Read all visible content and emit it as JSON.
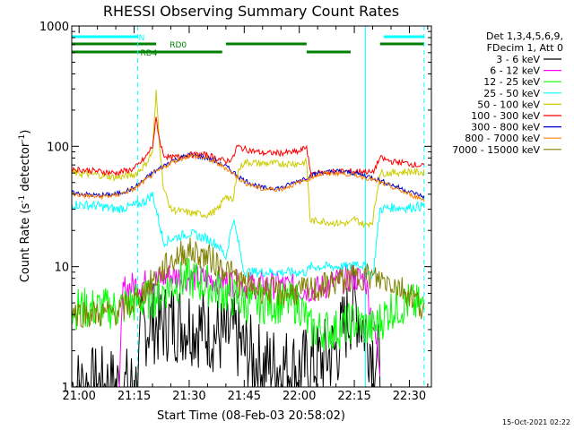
{
  "chart_data": {
    "type": "line",
    "title": "RHESSI Observing Summary Count Rates",
    "xlabel": "Start Time (08-Feb-03 20:58:02)",
    "ylabel_main": "Count Rate (s",
    "ylabel_sup1": "-1",
    "ylabel_mid": " detector",
    "ylabel_sup2": "-1",
    "ylabel_end": ")",
    "yscale": "log",
    "ylim": [
      1,
      1000
    ],
    "xlim_minutes": [
      -2,
      96
    ],
    "x_ticks": [
      {
        "label": "21:00",
        "t": 0
      },
      {
        "label": "21:15",
        "t": 15
      },
      {
        "label": "21:30",
        "t": 30
      },
      {
        "label": "21:45",
        "t": 45
      },
      {
        "label": "22:00",
        "t": 60
      },
      {
        "label": "22:15",
        "t": 75
      },
      {
        "label": "22:30",
        "t": 90
      }
    ],
    "y_ticks": [
      {
        "label": "1",
        "v": 1
      },
      {
        "label": "10",
        "v": 10
      },
      {
        "label": "100",
        "v": 100
      },
      {
        "label": "1000",
        "v": 1000
      }
    ],
    "legend_header": [
      "Det 1,3,4,5,6,9,",
      "FDecim 1, Att 0"
    ],
    "legend_position": "right",
    "flags": [
      {
        "label": "N",
        "color": "#00ffff",
        "segments": [
          [
            -2,
            16
          ],
          [
            83,
            94
          ]
        ]
      },
      {
        "label": "RD0",
        "color": "#008000",
        "segments": [
          [
            -2,
            21
          ],
          [
            40,
            62
          ],
          [
            82,
            94
          ]
        ]
      },
      {
        "label": "RD4",
        "color": "#008000",
        "segments": [
          [
            -2,
            19
          ],
          [
            19,
            39
          ],
          [
            62,
            74
          ]
        ]
      }
    ],
    "vlines_dashed": [
      16,
      94
    ],
    "vlines_solid": [
      78
    ],
    "series": [
      {
        "name": "3 - 6 keV",
        "color": "#000000",
        "x": [
          -2,
          16,
          17,
          20,
          22,
          24,
          30,
          35,
          40,
          42,
          45,
          50,
          55,
          60,
          65,
          70,
          72,
          75,
          78,
          80,
          82
        ],
        "y": [
          1,
          1,
          3.0,
          3.5,
          3.2,
          3.5,
          3.4,
          3.0,
          2.5,
          2.8,
          2.0,
          1.5,
          1.5,
          1.4,
          1.6,
          2.0,
          3.0,
          5.0,
          3.0,
          2.0,
          1.5
        ]
      },
      {
        "name": "6 - 12 keV",
        "color": "#ff00ff",
        "x": [
          11,
          12,
          15,
          20,
          25,
          30,
          35,
          40,
          45,
          50,
          55,
          60,
          65,
          70,
          74,
          78,
          82
        ],
        "y": [
          1,
          6.5,
          7.0,
          7.5,
          8.5,
          8.0,
          8.0,
          7.5,
          7.0,
          7.0,
          7.0,
          6.5,
          6.5,
          7.5,
          8.0,
          8.0,
          1.5
        ]
      },
      {
        "name": "12 - 25 keV",
        "color": "#00ff00",
        "x": [
          -2,
          5,
          10,
          15,
          20,
          25,
          30,
          35,
          40,
          45,
          50,
          55,
          60,
          63,
          66,
          70,
          75,
          80,
          85,
          90,
          94
        ],
        "y": [
          4.5,
          4.5,
          4.5,
          5.0,
          5.5,
          7.0,
          8.0,
          7.0,
          6.0,
          5.0,
          5.0,
          5.0,
          5.0,
          3.0,
          3.0,
          3.0,
          3.5,
          3.0,
          4.5,
          5.0,
          4.5
        ]
      },
      {
        "name": "25 - 50 keV",
        "color": "#00ffff",
        "x": [
          -2,
          5,
          10,
          15,
          18,
          20,
          21,
          23,
          25,
          30,
          35,
          38,
          40,
          42,
          43,
          45,
          50,
          55,
          60,
          62,
          63,
          66,
          70,
          74,
          75,
          78,
          80,
          82,
          85,
          90,
          94
        ],
        "y": [
          33,
          32,
          30,
          32,
          35,
          40,
          30,
          16,
          17,
          19,
          17,
          15,
          12,
          25,
          18,
          9,
          9,
          9,
          9,
          9,
          10,
          10,
          10,
          10,
          11,
          10,
          8,
          30,
          31,
          31,
          32
        ]
      },
      {
        "name": "50 - 100 keV",
        "color": "#cccc00",
        "x": [
          -2,
          5,
          10,
          15,
          18,
          20,
          21,
          22,
          23,
          25,
          30,
          35,
          38,
          40,
          41,
          42,
          43,
          45,
          50,
          55,
          60,
          62,
          63,
          66,
          70,
          74,
          75,
          78,
          80,
          82,
          85,
          90,
          94
        ],
        "y": [
          60,
          58,
          55,
          58,
          70,
          90,
          280,
          100,
          45,
          30,
          28,
          27,
          30,
          40,
          36,
          35,
          60,
          74,
          72,
          72,
          72,
          74,
          24,
          24,
          23,
          23,
          25,
          22,
          24,
          60,
          60,
          62,
          60
        ]
      },
      {
        "name": "100 - 300 keV",
        "color": "#ff0000",
        "x": [
          -2,
          5,
          10,
          15,
          18,
          20,
          21,
          22,
          23,
          25,
          30,
          35,
          40,
          42,
          43,
          45,
          50,
          55,
          60,
          62,
          63,
          66,
          70,
          74,
          78,
          80,
          82,
          85,
          90,
          94
        ],
        "y": [
          65,
          62,
          60,
          65,
          80,
          100,
          170,
          110,
          85,
          80,
          85,
          85,
          75,
          80,
          100,
          95,
          88,
          88,
          90,
          100,
          60,
          60,
          62,
          62,
          62,
          60,
          80,
          75,
          72,
          68
        ]
      },
      {
        "name": "300 - 800 keV",
        "color": "#0000cc",
        "x": [
          -2,
          5,
          10,
          15,
          20,
          25,
          30,
          35,
          40,
          45,
          50,
          55,
          60,
          65,
          70,
          75,
          80,
          85,
          90,
          94
        ],
        "y": [
          41,
          39,
          40,
          45,
          60,
          75,
          85,
          80,
          68,
          52,
          45,
          45,
          52,
          60,
          62,
          60,
          55,
          48,
          42,
          38
        ]
      },
      {
        "name": "800 - 7000 keV",
        "color": "#ff8000",
        "x": [
          -2,
          5,
          10,
          15,
          20,
          25,
          30,
          35,
          40,
          45,
          50,
          55,
          60,
          65,
          70,
          75,
          80,
          85,
          90,
          94
        ],
        "y": [
          40,
          38,
          39,
          44,
          58,
          73,
          84,
          79,
          66,
          50,
          44,
          44,
          50,
          58,
          60,
          58,
          53,
          46,
          40,
          36
        ]
      },
      {
        "name": "7000 - 15000 keV",
        "color": "#808000",
        "x": [
          -2,
          5,
          10,
          15,
          20,
          25,
          28,
          30,
          35,
          40,
          45,
          50,
          55,
          60,
          65,
          70,
          75,
          78,
          80,
          85,
          90,
          94
        ],
        "y": [
          4.2,
          4.0,
          4.2,
          5.0,
          7.5,
          11,
          13,
          13.5,
          12,
          9.5,
          7.0,
          6.5,
          6.0,
          6.2,
          6.5,
          7.5,
          8.0,
          8.5,
          8.0,
          7.5,
          6.0,
          4.5
        ]
      }
    ]
  },
  "footer_date": "15-Oct-2021 02:22"
}
